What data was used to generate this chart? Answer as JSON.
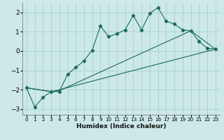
{
  "xlabel": "Humidex (Indice chaleur)",
  "xlim": [
    -0.5,
    23.5
  ],
  "ylim": [
    -3.3,
    2.5
  ],
  "yticks": [
    -3,
    -2,
    -1,
    0,
    1,
    2
  ],
  "xticks": [
    0,
    1,
    2,
    3,
    4,
    5,
    6,
    7,
    8,
    9,
    10,
    11,
    12,
    13,
    14,
    15,
    16,
    17,
    18,
    19,
    20,
    21,
    22,
    23
  ],
  "bg_color": "#cce8e8",
  "grid_color": "#aacfcf",
  "line_color": "#1a6b5a",
  "line1_x": [
    0,
    1,
    2,
    3,
    4,
    5,
    6,
    7,
    8,
    9,
    10,
    11,
    12,
    13,
    14,
    15,
    16,
    17,
    18,
    19,
    20,
    21,
    22,
    23
  ],
  "line1_y": [
    -1.9,
    -2.9,
    -2.4,
    -2.1,
    -2.1,
    -1.2,
    -0.85,
    -0.5,
    0.05,
    1.3,
    0.75,
    0.9,
    1.1,
    1.85,
    1.1,
    1.95,
    2.25,
    1.55,
    1.4,
    1.1,
    1.05,
    0.5,
    0.15,
    0.1
  ],
  "line2_x": [
    0,
    3,
    4,
    20,
    23
  ],
  "line2_y": [
    -1.9,
    -2.1,
    -2.05,
    1.05,
    0.1
  ],
  "line3_x": [
    0,
    3,
    4,
    23
  ],
  "line3_y": [
    -1.9,
    -2.1,
    -2.0,
    0.1
  ]
}
